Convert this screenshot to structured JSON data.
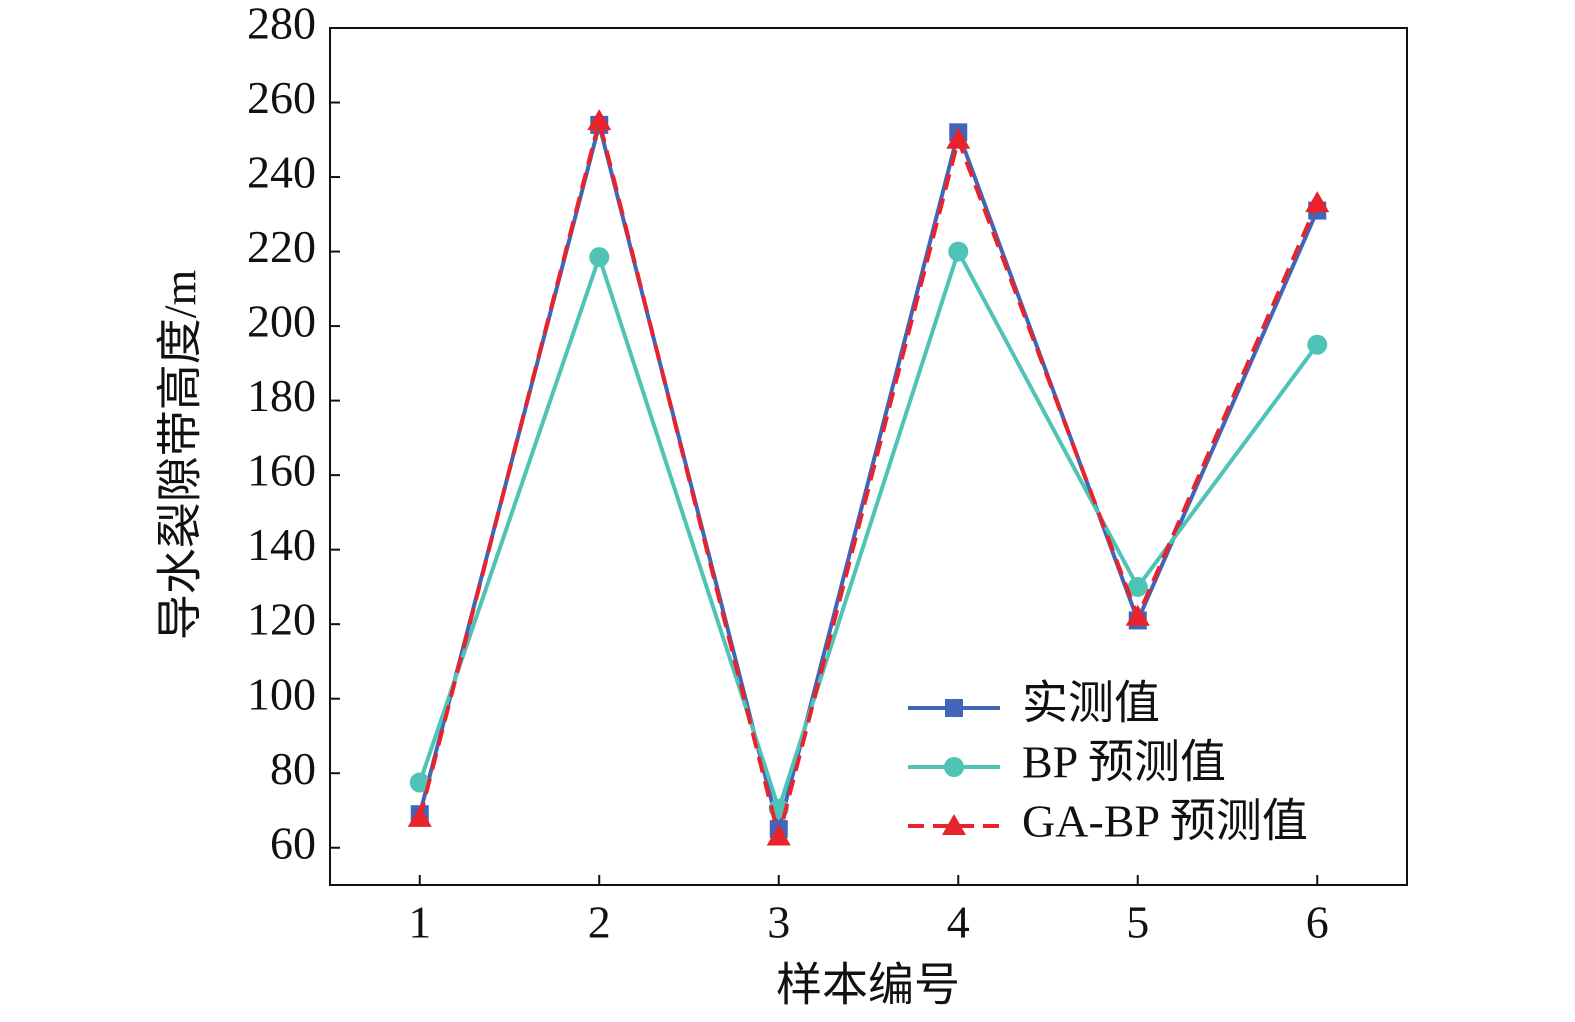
{
  "chart_data": {
    "type": "line",
    "xlabel": "样本编号",
    "ylabel": "导水裂隙带高度/m",
    "x": [
      1,
      2,
      3,
      4,
      5,
      6
    ],
    "xlim": [
      0.5,
      6.5
    ],
    "xticks": [
      1,
      2,
      3,
      4,
      5,
      6
    ],
    "ylim": [
      50,
      280
    ],
    "yticks": [
      60,
      80,
      100,
      120,
      140,
      160,
      180,
      200,
      220,
      240,
      260,
      280
    ],
    "legend": "lower right",
    "series": [
      {
        "name": "实测值",
        "color": "#3f66b8",
        "marker": "square",
        "dash": false,
        "values": [
          69,
          254,
          65,
          252,
          121,
          231
        ]
      },
      {
        "name": "BP 预测值",
        "color": "#4fc4b6",
        "marker": "circle",
        "dash": false,
        "values": [
          77.5,
          218.5,
          70.5,
          220,
          130,
          195
        ]
      },
      {
        "name": "GA-BP 预测值",
        "color": "#e8232c",
        "marker": "triangle",
        "dash": true,
        "values": [
          68,
          255,
          63,
          250,
          122,
          233
        ]
      }
    ]
  }
}
